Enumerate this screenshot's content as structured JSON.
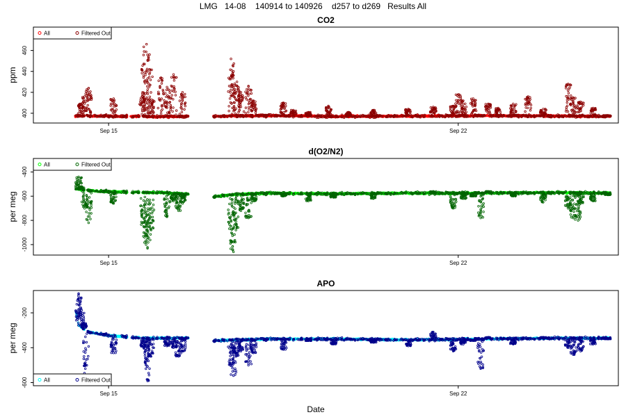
{
  "page_title": "LMG   14-08    140914 to 140926    d257 to d269   Results All",
  "x_axis_label": "Date",
  "legend": {
    "all": "All",
    "filtered": "Filtered Out"
  },
  "chart_data": [
    {
      "id": "co2",
      "type": "scatter",
      "title": "CO2",
      "ylabel": "ppm",
      "xlabel": "Date",
      "x_ticks": [
        {
          "label": "Sep 15",
          "day": 15
        },
        {
          "label": "Sep 22",
          "day": 22
        }
      ],
      "xlim": [
        13.55,
        25.15
      ],
      "y_ticks": [
        400,
        420,
        440,
        460
      ],
      "ylim": [
        392,
        481
      ],
      "colors": {
        "all": "#ff0000",
        "filtered": "#8b0000"
      },
      "legend_entries": [
        "All",
        "Filtered Out"
      ],
      "baseline": {
        "name": "All",
        "x": [
          14.33,
          15.7,
          15.95,
          16.1,
          16.62,
          16.8,
          17.1,
          17.55,
          18.2,
          19.5,
          21.0,
          22.5,
          24.0,
          25.05
        ],
        "y": [
          397.5,
          397.0,
          396.5,
          396.8,
          397.0,
          396.5,
          397.0,
          397.5,
          397.8,
          397.0,
          397.3,
          397.6,
          397.4,
          397.0
        ]
      },
      "spikes": {
        "name": "Filtered Out",
        "x": [
          14.45,
          14.52,
          14.6,
          15.1,
          15.68,
          15.72,
          15.76,
          15.82,
          15.86,
          16.05,
          16.17,
          16.3,
          16.48,
          17.45,
          17.5,
          17.57,
          17.65,
          17.8,
          17.9,
          18.5,
          18.7,
          19.0,
          19.4,
          19.8,
          20.3,
          21.0,
          21.5,
          21.9,
          22.0,
          22.1,
          22.3,
          22.6,
          22.8,
          23.1,
          23.4,
          23.7,
          24.2,
          24.3,
          24.45,
          24.7,
          25.0
        ],
        "y": [
          409,
          416,
          424,
          414,
          420,
          447,
          466,
          442,
          413,
          434,
          425,
          437,
          420,
          452,
          440,
          430,
          420,
          426,
          412,
          410,
          403,
          401,
          407,
          401,
          403,
          404,
          406,
          407,
          418,
          412,
          414,
          409,
          405,
          409,
          416,
          404,
          428,
          415,
          411,
          405,
          398
        ]
      }
    },
    {
      "id": "o2n2",
      "type": "scatter",
      "title": "d(O2/N2)",
      "ylabel": "per meg",
      "xlabel": "Date",
      "x_ticks": [
        {
          "label": "Sep 15",
          "day": 15
        },
        {
          "label": "Sep 22",
          "day": 22
        }
      ],
      "xlim": [
        13.55,
        25.15
      ],
      "y_ticks": [
        -1000,
        -800,
        -600,
        -400
      ],
      "ylim": [
        -1075,
        -300
      ],
      "colors": {
        "all": "#00ff00",
        "filtered": "#006400"
      },
      "legend_entries": [
        "All",
        "Filtered Out"
      ],
      "baseline": {
        "name": "All",
        "x": [
          14.33,
          14.8,
          15.7,
          16.05,
          16.62,
          16.8,
          17.1,
          17.55,
          18.2,
          19.5,
          21.0,
          22.5,
          24.0,
          25.05
        ],
        "y": [
          -540,
          -560,
          -570,
          -570,
          -585,
          -590,
          -605,
          -585,
          -575,
          -580,
          -575,
          -575,
          -570,
          -575
        ]
      },
      "spikes": {
        "name": "Filtered Out",
        "x": [
          14.4,
          14.45,
          14.52,
          14.6,
          15.1,
          15.7,
          15.75,
          15.78,
          15.85,
          16.17,
          16.3,
          16.4,
          16.48,
          17.45,
          17.5,
          17.55,
          17.65,
          17.8,
          17.9,
          18.5,
          19.0,
          19.5,
          20.3,
          21.5,
          21.9,
          22.1,
          22.3,
          22.45,
          22.6,
          23.1,
          23.7,
          24.2,
          24.3,
          24.4,
          24.45,
          24.7,
          25.0
        ],
        "y": [
          -440,
          -520,
          -700,
          -820,
          -660,
          -850,
          -1000,
          -1030,
          -880,
          -770,
          -640,
          -720,
          -660,
          -980,
          -1060,
          -880,
          -720,
          -780,
          -640,
          -600,
          -640,
          -610,
          -620,
          -560,
          -700,
          -620,
          -600,
          -780,
          -560,
          -600,
          -650,
          -700,
          -780,
          -800,
          -660,
          -640,
          -590
        ]
      }
    },
    {
      "id": "apo",
      "type": "scatter",
      "title": "APO",
      "ylabel": "per meg",
      "xlabel": "Date",
      "x_ticks": [
        {
          "label": "Sep 15",
          "day": 15
        },
        {
          "label": "Sep 22",
          "day": 22
        }
      ],
      "xlim": [
        13.55,
        25.15
      ],
      "y_ticks": [
        -600,
        -400,
        -200
      ],
      "ylim": [
        -610,
        -80
      ],
      "colors": {
        "all": "#00ffff",
        "filtered": "#00008b"
      },
      "legend_entries": [
        "All",
        "Filtered Out"
      ],
      "baseline": {
        "name": "All",
        "x": [
          14.33,
          14.4,
          14.6,
          15.0,
          15.7,
          16.05,
          16.62,
          16.8,
          17.1,
          17.55,
          18.2,
          19.5,
          21.0,
          22.5,
          24.0,
          25.05
        ],
        "y": [
          -170,
          -270,
          -310,
          -330,
          -345,
          -345,
          -345,
          -355,
          -360,
          -355,
          -350,
          -350,
          -355,
          -350,
          -345,
          -345
        ]
      },
      "spikes": {
        "name": "Filtered Out",
        "x": [
          14.4,
          14.45,
          14.5,
          14.55,
          15.1,
          15.7,
          15.75,
          15.78,
          15.85,
          16.17,
          16.3,
          16.4,
          16.48,
          17.45,
          17.5,
          17.55,
          17.65,
          17.8,
          17.9,
          18.5,
          19.0,
          19.5,
          20.3,
          21.0,
          21.5,
          21.9,
          22.1,
          22.3,
          22.45,
          22.6,
          23.1,
          23.7,
          24.2,
          24.3,
          24.45,
          24.7,
          25.0
        ],
        "y": [
          -90,
          -175,
          -260,
          -560,
          -430,
          -400,
          -500,
          -590,
          -450,
          -390,
          -400,
          -450,
          -420,
          -500,
          -560,
          -450,
          -420,
          -500,
          -430,
          -410,
          -360,
          -380,
          -370,
          -390,
          -310,
          -420,
          -380,
          -360,
          -520,
          -340,
          -380,
          -340,
          -400,
          -440,
          -420,
          -380,
          -350
        ]
      }
    }
  ]
}
